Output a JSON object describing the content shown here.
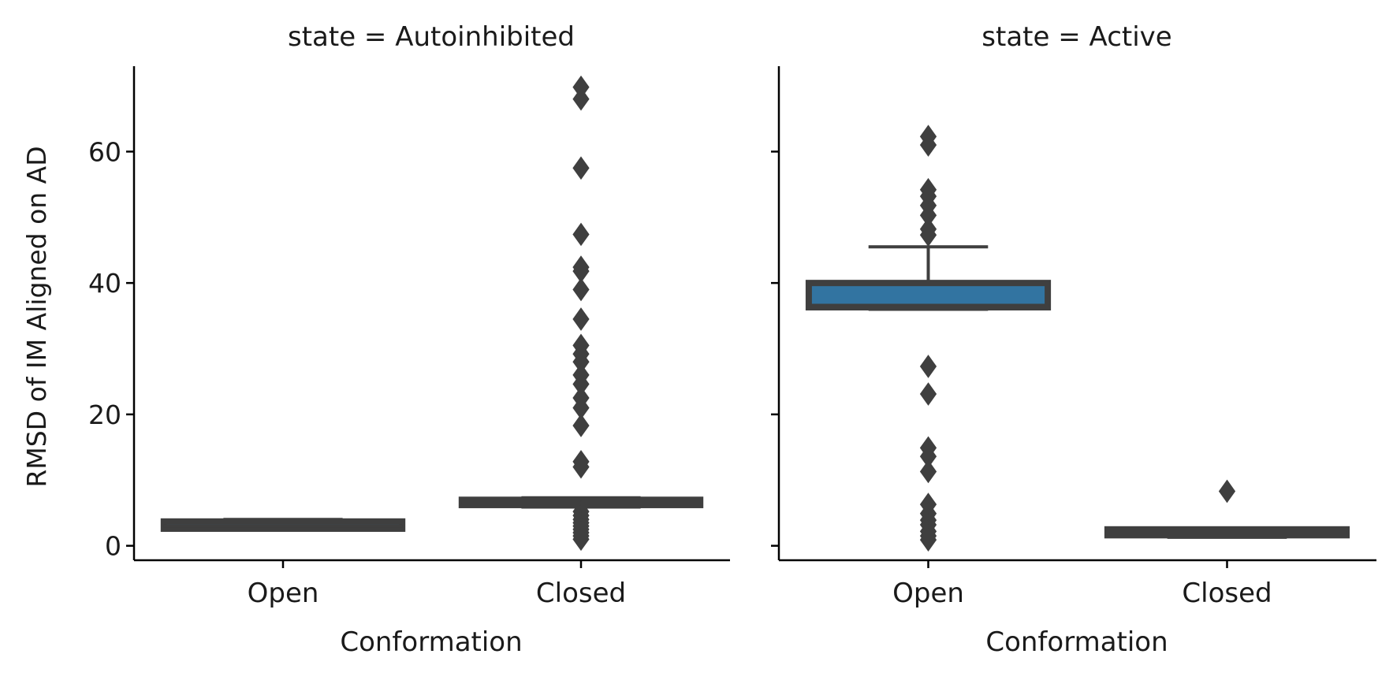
{
  "chart_data": {
    "type": "boxplot",
    "facet_variable": "state",
    "ylabel": "RMSD of IM Aligned on AD",
    "ylim": [
      -2.2,
      73
    ],
    "yticks": [
      0,
      20,
      40,
      60
    ],
    "colors": {
      "box_face": "#3274a1",
      "line": "#3f3f3f",
      "axis": "#000000"
    },
    "panels": [
      {
        "title": "state = Autoinhibited",
        "xlabel": "Conformation",
        "categories": [
          "Open",
          "Closed"
        ],
        "boxes": [
          {
            "category": "Open",
            "q1": 2.6,
            "median": 3.0,
            "q3": 3.7,
            "whisker_low": 2.4,
            "whisker_high": 4.0,
            "outliers": []
          },
          {
            "category": "Closed",
            "q1": 6.2,
            "median": 6.5,
            "q3": 7.0,
            "whisker_low": 5.9,
            "whisker_high": 7.3,
            "outliers": [
              69.8,
              68.0,
              57.5,
              47.4,
              42.4,
              41.8,
              39.0,
              34.5,
              30.5,
              29.2,
              28.0,
              26.0,
              24.6,
              22.5,
              21.0,
              18.3,
              12.8,
              12.0,
              5.2,
              4.6,
              4.0,
              3.5,
              3.0,
              2.5,
              2.0,
              1.5,
              1.0
            ]
          }
        ]
      },
      {
        "title": "state = Active",
        "xlabel": "Conformation",
        "categories": [
          "Open",
          "Closed"
        ],
        "boxes": [
          {
            "category": "Open",
            "q1": 36.3,
            "median": 36.6,
            "q3": 40.0,
            "whisker_low": 36.0,
            "whisker_high": 45.5,
            "outliers": [
              62.3,
              61.0,
              54.2,
              53.2,
              51.8,
              50.3,
              48.2,
              47.3,
              27.3,
              23.1,
              14.9,
              13.6,
              11.3,
              6.3,
              4.9,
              3.9,
              3.2,
              2.2,
              1.5,
              0.9
            ]
          },
          {
            "category": "Closed",
            "q1": 1.6,
            "median": 2.0,
            "q3": 2.5,
            "whisker_low": 1.3,
            "whisker_high": 2.6,
            "outliers": [
              8.3
            ]
          }
        ]
      }
    ]
  }
}
